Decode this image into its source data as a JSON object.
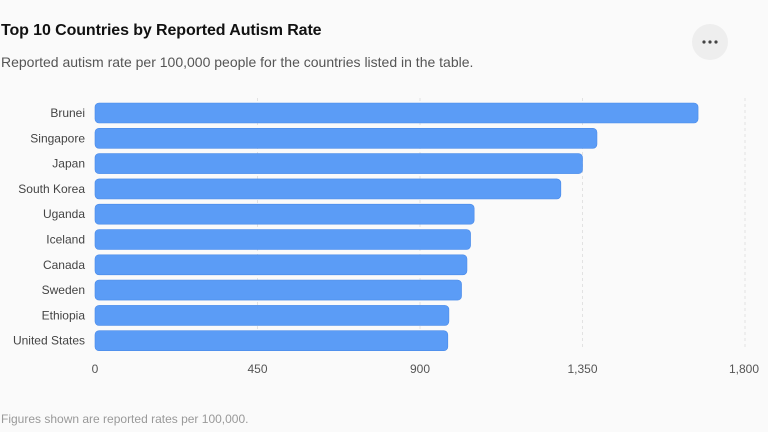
{
  "header": {
    "title": "Top 10 Countries by Reported Autism Rate",
    "subtitle": "Reported autism rate per 100,000 people for the countries listed in the table.",
    "menu_icon": "more-horizontal-icon"
  },
  "footer": {
    "note": "Figures shown are reported rates per 100,000."
  },
  "colors": {
    "bar": "#5b9cf6",
    "bar_stroke": "#4a8ae8",
    "grid": "#e2e2e2",
    "background": "#fafafa"
  },
  "chart_data": {
    "type": "bar",
    "orientation": "horizontal",
    "categories": [
      "Brunei",
      "Singapore",
      "Japan",
      "South Korea",
      "Uganda",
      "Iceland",
      "Canada",
      "Sweden",
      "Ethiopia",
      "United States"
    ],
    "values": [
      1670,
      1390,
      1350,
      1290,
      1050,
      1040,
      1030,
      1015,
      980,
      977
    ],
    "xlim": [
      0,
      1800
    ],
    "xticks": [
      0,
      450,
      900,
      1350,
      1800
    ],
    "xtick_labels": [
      "0",
      "450",
      "900",
      "1,350",
      "1,800"
    ],
    "grid": true,
    "xlabel": "",
    "ylabel": ""
  }
}
